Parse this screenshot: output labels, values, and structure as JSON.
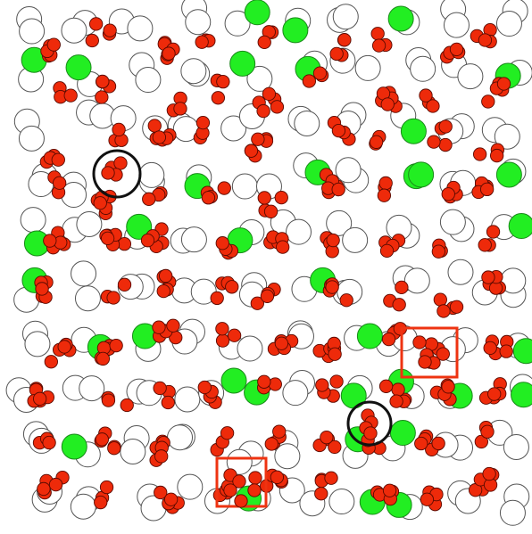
{
  "image": {
    "description_label": "",
    "colors": {
      "background": "#ffffff",
      "white_disk_fill": "#ffffff",
      "white_disk_stroke": "#555555",
      "green_disk_fill": "#22ee22",
      "green_disk_stroke": "#1a8a1a",
      "red_dot_fill": "#ee2a0a",
      "red_dot_stroke": "#5a0a00",
      "highlight_circle": "#111111",
      "highlight_square": "#ee3311"
    },
    "legend": []
  }
}
